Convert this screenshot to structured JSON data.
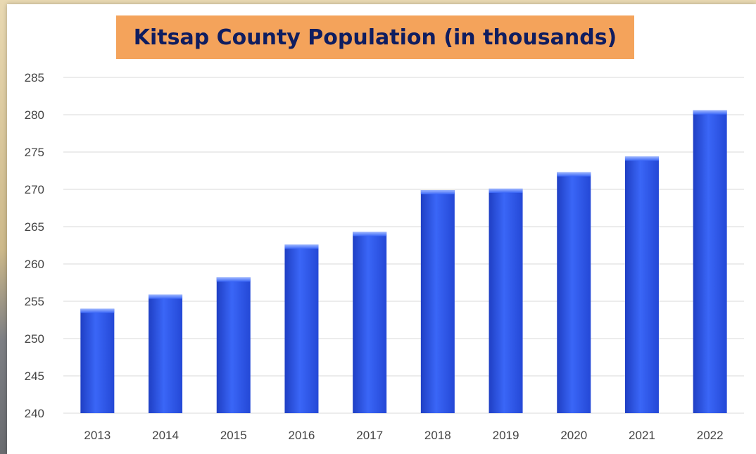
{
  "chart_data": {
    "type": "bar",
    "title": "Kitsap County Population (in thousands)",
    "xlabel": "",
    "ylabel": "",
    "categories": [
      "2013",
      "2014",
      "2015",
      "2016",
      "2017",
      "2018",
      "2019",
      "2020",
      "2021",
      "2022"
    ],
    "values": [
      254.0,
      255.9,
      258.2,
      262.6,
      264.3,
      269.9,
      270.1,
      272.3,
      274.4,
      280.6
    ],
    "ylim": [
      240,
      285
    ],
    "yticks": [
      240,
      245,
      250,
      255,
      260,
      265,
      270,
      275,
      280,
      285
    ],
    "grid": true,
    "legend": "none",
    "colors": {
      "bar": "#2f5cf0",
      "bar_highlight": "#7fa3ff",
      "title_bg": "#f4a35b",
      "title_text": "#0f1d60",
      "grid": "#d9d9d9"
    }
  }
}
